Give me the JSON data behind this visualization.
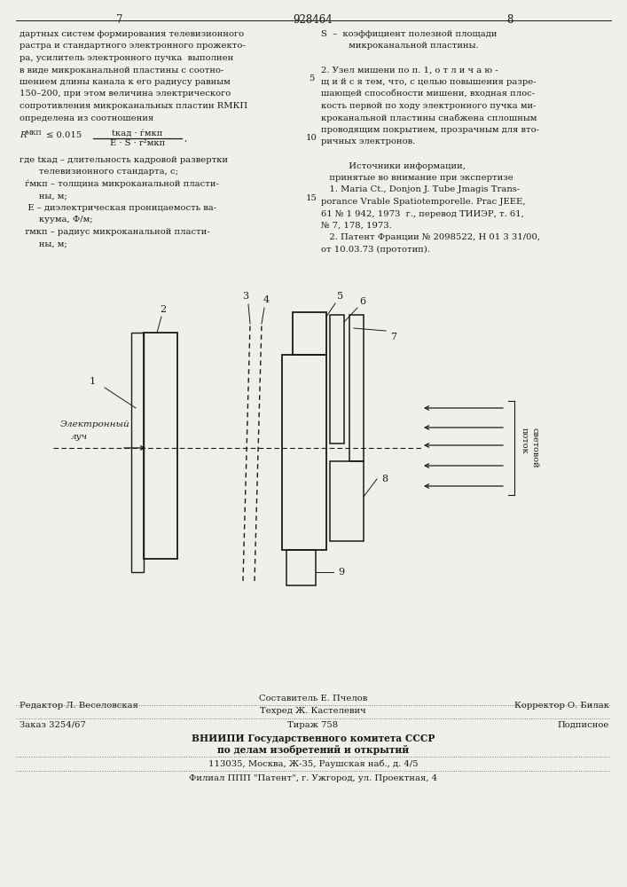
{
  "page_number_left": "7",
  "page_number_center": "928464",
  "page_number_right": "8",
  "bg_color": "#f0efeb",
  "text_color": "#1a1a1a",
  "left_col_text": [
    "дартных систем формирования телевизионного",
    "растра и стандартного электронного прожекто-",
    "ра, усилитель электронного пучка  выполнен",
    "в виде микроканальной пластины с соотно-",
    "шением длины канала к его радиусу равным",
    "150–200, при этом величина электрического",
    "сопротивления микроканальных пластин RМКП",
    "определена из соотношения"
  ],
  "formula_numerator": "tкад · ѓмкп",
  "formula_denominator": "Е · S · r²мкп",
  "variable_lines": [
    "где tкад – длительность кадровой развертки",
    "       телевизионного стандарта, с;",
    "  ѓмкп – толщина микроканальной пласти-",
    "       ны, м;",
    "   Е – диэлектрическая проницаемость ва-",
    "       куума, Ф/м;",
    "  rмкп – радиус микроканальной пласти-",
    "       ны, м;"
  ],
  "right_col_text": [
    "S  –  коэффициент полезной площади",
    "          микроканальной пластины.",
    "",
    "2. Узел мишени по п. 1, о т л и ч а ю -",
    "щ и й с я тем, что, с целью повышения разре-",
    "шающей способности мишени, входная плос-",
    "кость первой по ходу электронного пучка ми-",
    "кроканальной пластины снабжена сплошным",
    "проводящим покрытием, прозрачным для вто-",
    "ричных электронов.",
    "",
    "          Источники информации,",
    "   принятые во внимание при экспертизе",
    "   1. Maria Ct., Donjon J. Tube Jmagis Trans-",
    "porance Vrable Spatiotemporelle. Prac JEEE,",
    "61 № 1 942, 1973  г., перевод ТИИЭР, т. 61,",
    "№ 7, 178, 1973.",
    "   2. Патент Франции № 2098522, Н 01 3 31/00,",
    "от 10.03.73 (прототип)."
  ],
  "footer_line1_left": "Редактор Л. Веселовская",
  "footer_composer": "Составитель Е. Пчелов",
  "footer_techred": "Техред Ж. Кастелевич",
  "footer_corrector": "Корректор О. Билак",
  "footer_line2_left": "Заказ 3254/67",
  "footer_line2_center": "Тираж 758",
  "footer_line2_right": "Подписное",
  "footer_line3": "ВНИИПИ Государственного комитета СССР",
  "footer_line4": "по делам изобретений и открытий",
  "footer_line5": "113035, Москва, Ж-35, Раушская наб., д. 4/5",
  "footer_line6": "Филиал ППП \"Патент\", г. Ужгород, ул. Проектная, 4"
}
